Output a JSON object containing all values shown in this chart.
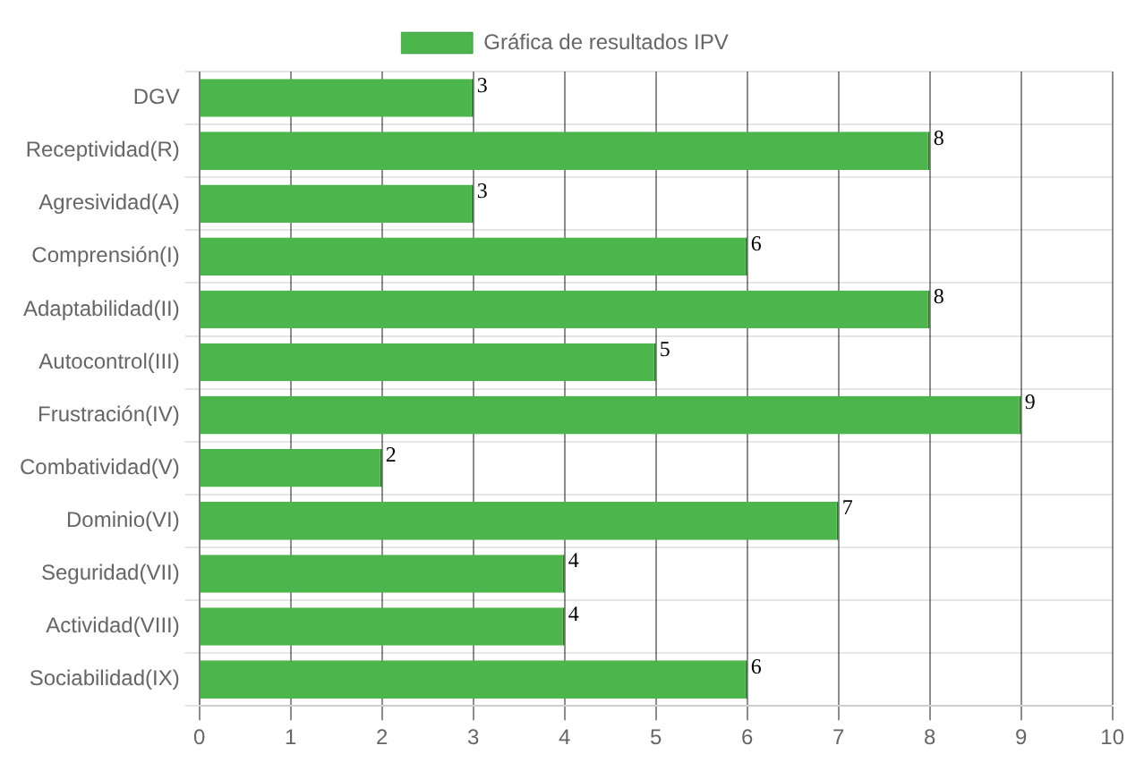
{
  "chart_data": {
    "type": "bar",
    "orientation": "horizontal",
    "categories": [
      "DGV",
      "Receptividad(R)",
      "Agresividad(A)",
      "Comprensión(I)",
      "Adaptabilidad(II)",
      "Autocontrol(III)",
      "Frustración(IV)",
      "Combatividad(V)",
      "Dominio(VI)",
      "Seguridad(VII)",
      "Actividad(VIII)",
      "Sociabilidad(IX)"
    ],
    "series": [
      {
        "name": "Gráfica de resultados IPV",
        "color": "#4cb54c",
        "values": [
          3,
          8,
          3,
          6,
          8,
          5,
          9,
          2,
          7,
          4,
          4,
          6
        ]
      }
    ],
    "xlim": [
      0,
      10
    ],
    "xticks": [
      0,
      1,
      2,
      3,
      4,
      5,
      6,
      7,
      8,
      9,
      10
    ],
    "grid": true,
    "legend": "top",
    "data_labels": true
  }
}
